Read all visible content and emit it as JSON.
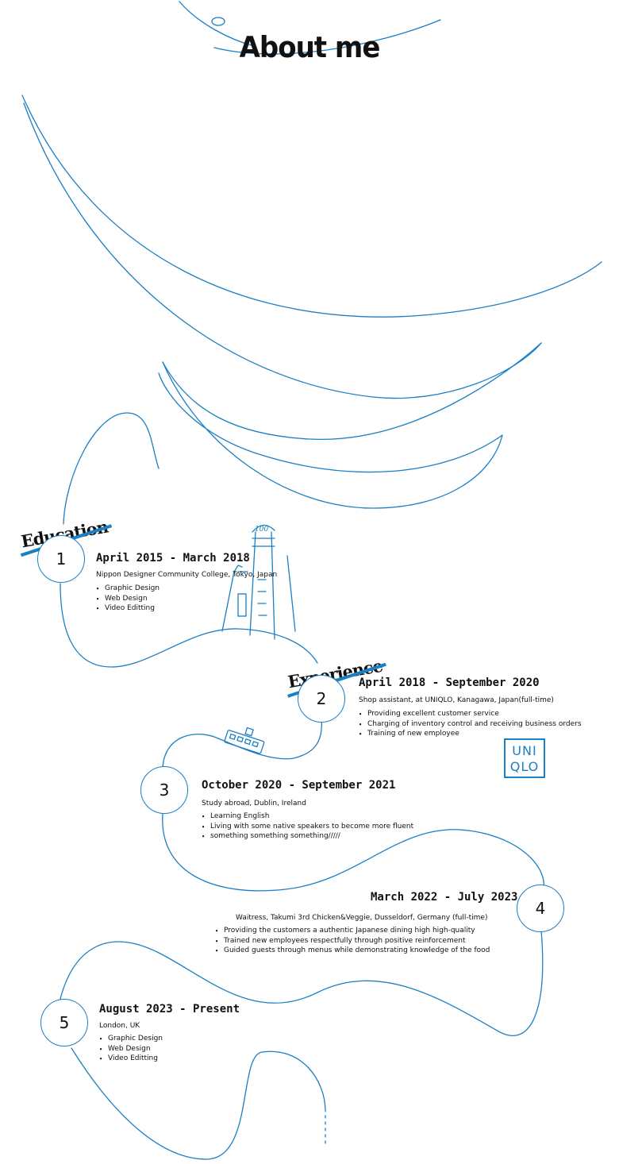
{
  "page": {
    "title": "About me"
  },
  "colors": {
    "accent": "#1a7fc4",
    "text": "#111111"
  },
  "badges": {
    "education": "Education",
    "experience": "Experience"
  },
  "entries": [
    {
      "number": "1",
      "date": "April 2015 - March 2018",
      "place": "Nippon Designer Community College, Tokyo, Japan",
      "bullets": [
        "Graphic Design",
        "Web Design",
        "Video Editting"
      ]
    },
    {
      "number": "2",
      "date": "April 2018 - September 2020",
      "place": "Shop assistant, at UNIQLO, Kanagawa, Japan(full-time)",
      "bullets": [
        "Providing excellent customer service",
        "Charging of inventory control and receiving business orders",
        "Training of new employee"
      ]
    },
    {
      "number": "3",
      "date": "October 2020 - September 2021",
      "place": "Study abroad, Dublin, Ireland",
      "bullets": [
        "Learning English",
        "Living with some native speakers to become more fluent",
        "something something something/////"
      ]
    },
    {
      "number": "4",
      "date": "March 2022 - July 2023",
      "place": "Waitress, Takumi 3rd Chicken&Veggie, Dusseldorf, Germany (full-time)",
      "bullets": [
        "Providing the customers a authentic Japanese dining high high-quality",
        "Trained new employees respectfully through positive reinforcement",
        "Guided guests through menus while demonstrating knowledge of the food"
      ]
    },
    {
      "number": "5",
      "date": "August 2023 - Present",
      "place": "London, UK",
      "bullets": [
        "Graphic Design",
        "Web Design",
        "Video Editting"
      ]
    }
  ],
  "logo": {
    "line1": "UNI",
    "line2": "QLO"
  },
  "illustrations": {
    "tower_text": "100"
  }
}
